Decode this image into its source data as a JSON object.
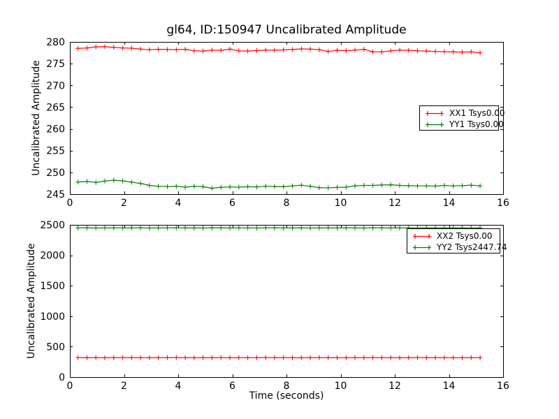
{
  "figure": {
    "title": "gl64, ID:150947 Uncalibrated Amplitude",
    "background": "#ffffff"
  },
  "chart_data": [
    {
      "type": "line",
      "title": "gl64, ID:150947 Uncalibrated Amplitude",
      "xlabel": "",
      "ylabel": "Uncalibrated Amplitude",
      "xlim": [
        0,
        16
      ],
      "ylim": [
        245,
        280
      ],
      "xticks": [
        0,
        2,
        4,
        6,
        8,
        10,
        12,
        14,
        16
      ],
      "yticks": [
        245,
        250,
        255,
        260,
        265,
        270,
        275,
        280
      ],
      "grid": false,
      "legend_position": "right-center",
      "x": [
        0.3,
        0.63,
        0.96,
        1.29,
        1.62,
        1.95,
        2.28,
        2.61,
        2.94,
        3.27,
        3.6,
        3.93,
        4.26,
        4.59,
        4.92,
        5.25,
        5.58,
        5.91,
        6.24,
        6.57,
        6.9,
        7.23,
        7.56,
        7.89,
        8.22,
        8.55,
        8.88,
        9.21,
        9.54,
        9.87,
        10.2,
        10.53,
        10.86,
        11.19,
        11.52,
        11.85,
        12.18,
        12.51,
        12.84,
        13.17,
        13.5,
        13.83,
        14.16,
        14.49,
        14.82,
        15.15
      ],
      "series": [
        {
          "name": "XX1 Tsys0.00",
          "color": "#ff0000",
          "marker": "plus",
          "values": [
            278.5,
            278.6,
            278.85,
            278.9,
            278.75,
            278.6,
            278.55,
            278.35,
            278.2,
            278.3,
            278.25,
            278.2,
            278.3,
            277.95,
            277.9,
            278.1,
            278.05,
            278.35,
            277.95,
            277.9,
            278.0,
            278.1,
            278.1,
            278.15,
            278.25,
            278.4,
            278.35,
            278.2,
            277.8,
            278.05,
            278.0,
            278.1,
            278.3,
            277.7,
            277.7,
            277.95,
            278.1,
            278.05,
            277.95,
            277.9,
            277.8,
            277.75,
            277.7,
            277.65,
            277.7,
            277.5
          ]
        },
        {
          "name": "YY1 Tsys0.00",
          "color": "#008000",
          "marker": "plus",
          "values": [
            247.8,
            247.9,
            247.7,
            248.0,
            248.2,
            248.05,
            247.75,
            247.45,
            247.0,
            246.8,
            246.75,
            246.8,
            246.6,
            246.8,
            246.7,
            246.35,
            246.55,
            246.65,
            246.6,
            246.7,
            246.65,
            246.8,
            246.75,
            246.7,
            246.9,
            247.05,
            246.8,
            246.5,
            246.45,
            246.55,
            246.6,
            246.9,
            247.0,
            247.0,
            247.1,
            247.15,
            247.0,
            246.95,
            246.9,
            246.9,
            246.85,
            247.0,
            246.9,
            246.95,
            247.05,
            246.9
          ]
        }
      ]
    },
    {
      "type": "line",
      "title": "",
      "xlabel": "Time (seconds)",
      "ylabel": "Uncalibrated Amplitude",
      "xlim": [
        0,
        16
      ],
      "ylim": [
        0,
        2500
      ],
      "xticks": [
        0,
        2,
        4,
        6,
        8,
        10,
        12,
        14,
        16
      ],
      "yticks": [
        0,
        500,
        1000,
        1500,
        2000,
        2500
      ],
      "grid": false,
      "legend_position": "top-right",
      "x": [
        0.3,
        0.63,
        0.96,
        1.29,
        1.62,
        1.95,
        2.28,
        2.61,
        2.94,
        3.27,
        3.6,
        3.93,
        4.26,
        4.59,
        4.92,
        5.25,
        5.58,
        5.91,
        6.24,
        6.57,
        6.9,
        7.23,
        7.56,
        7.89,
        8.22,
        8.55,
        8.88,
        9.21,
        9.54,
        9.87,
        10.2,
        10.53,
        10.86,
        11.19,
        11.52,
        11.85,
        12.18,
        12.51,
        12.84,
        13.17,
        13.5,
        13.83,
        14.16,
        14.49,
        14.82,
        15.15
      ],
      "series": [
        {
          "name": "XX2 Tsys0.00",
          "color": "#ff0000",
          "marker": "plus",
          "values": [
            321,
            320,
            320,
            319,
            320,
            321,
            320,
            320,
            319,
            320,
            320,
            321,
            320,
            319,
            320,
            320,
            321,
            320,
            320,
            319,
            320,
            321,
            320,
            320,
            320,
            319,
            320,
            321,
            320,
            320,
            319,
            320,
            320,
            321,
            320,
            320,
            319,
            320,
            321,
            320,
            320,
            320,
            319,
            320,
            320,
            320
          ]
        },
        {
          "name": "YY2 Tsys2447.74",
          "color": "#008000",
          "marker": "plus",
          "values": [
            2450,
            2452,
            2448,
            2450,
            2451,
            2449,
            2450,
            2452,
            2448,
            2450,
            2450,
            2451,
            2449,
            2450,
            2448,
            2452,
            2450,
            2449,
            2451,
            2450,
            2448,
            2450,
            2452,
            2449,
            2450,
            2451,
            2448,
            2450,
            2450,
            2449,
            2451,
            2450,
            2448,
            2452,
            2450,
            2449,
            2450,
            2451,
            2448,
            2450,
            2450,
            2449,
            2451,
            2450,
            2448,
            2450
          ]
        }
      ]
    }
  ]
}
